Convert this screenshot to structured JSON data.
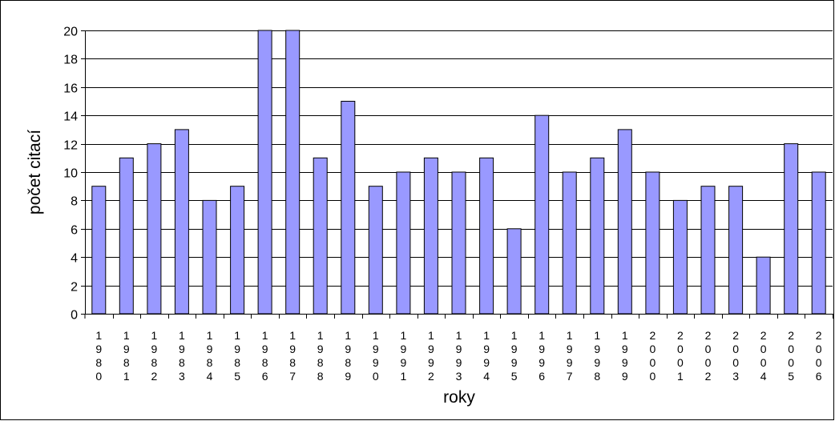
{
  "chart_data": {
    "type": "bar",
    "title": "",
    "xlabel": "roky",
    "ylabel": "počet citací",
    "categories": [
      "1980",
      "1981",
      "1982",
      "1983",
      "1984",
      "1985",
      "1986",
      "1987",
      "1988",
      "1989",
      "1990",
      "1991",
      "1992",
      "1993",
      "1994",
      "1995",
      "1996",
      "1997",
      "1998",
      "1999",
      "2000",
      "2001",
      "2002",
      "2003",
      "2004",
      "2005",
      "2006"
    ],
    "values": [
      9,
      11,
      12,
      13,
      8,
      9,
      20,
      20,
      11,
      15,
      9,
      10,
      11,
      10,
      11,
      6,
      14,
      10,
      11,
      13,
      10,
      8,
      9,
      9,
      4,
      12,
      10
    ],
    "ylim": [
      0,
      20
    ],
    "yticks": [
      0,
      2,
      4,
      6,
      8,
      10,
      12,
      14,
      16,
      18,
      20
    ],
    "grid": true,
    "legend": "none",
    "bar_color": "#9999ff",
    "bar_edge_color": "#000000"
  }
}
